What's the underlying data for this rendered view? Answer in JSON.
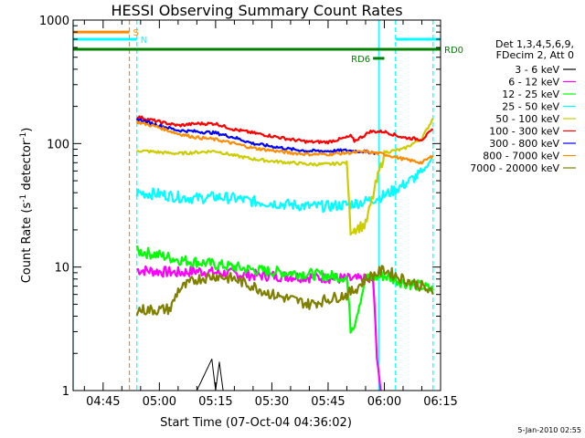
{
  "chart_data": {
    "type": "line",
    "title": "HESSI Observing Summary Count Rates",
    "xlabel": "Start Time (07-Oct-04 04:36:02)",
    "ylabel_main": "Count Rate (s",
    "ylabel_sup1": "-1",
    "ylabel_mid": " detector",
    "ylabel_sup2": "-1",
    "ylabel_end": ")",
    "y_scale": "log",
    "ylim": [
      1,
      1000
    ],
    "xlim_minutes": [
      -23,
      75
    ],
    "y_ticks": [
      {
        "value": 1,
        "label": "1"
      },
      {
        "value": 10,
        "label": "10"
      },
      {
        "value": 100,
        "label": "100"
      },
      {
        "value": 1000,
        "label": "1000"
      }
    ],
    "x_ticks": [
      {
        "minute": -15,
        "label": "04:45"
      },
      {
        "minute": 0,
        "label": "05:00"
      },
      {
        "minute": 15,
        "label": "05:15"
      },
      {
        "minute": 30,
        "label": "05:30"
      },
      {
        "minute": 45,
        "label": "05:45"
      },
      {
        "minute": 60,
        "label": "06:00"
      },
      {
        "minute": 75,
        "label": "06:15"
      }
    ],
    "legend": {
      "header": [
        "Det 1,3,4,5,6,9,",
        "FDecim 2, Att 0"
      ],
      "placement": "right"
    },
    "series": [
      {
        "name": "3 - 6 keV",
        "color": "#000000",
        "x": [
          -6,
          0,
          5,
          10,
          14,
          15,
          16,
          17,
          18,
          25,
          35,
          45,
          55,
          65,
          73
        ],
        "y": [
          1,
          1,
          1,
          1,
          1.8,
          1,
          1.7,
          1,
          1,
          1,
          1,
          1,
          1,
          1,
          1
        ]
      },
      {
        "name": "6 - 12 keV",
        "color": "#ff00ff",
        "x": [
          -6,
          0,
          5,
          10,
          15,
          20,
          25,
          30,
          35,
          40,
          45,
          50,
          55,
          57,
          58,
          59
        ],
        "y": [
          9.5,
          9.2,
          9.0,
          9.3,
          9.0,
          8.8,
          8.6,
          8.5,
          8.4,
          8.3,
          8.2,
          8.0,
          7.9,
          7.8,
          2.0,
          1.0
        ]
      },
      {
        "name": "12 - 25 keV",
        "color": "#00ff00",
        "x": [
          -6,
          0,
          5,
          10,
          15,
          20,
          25,
          30,
          35,
          40,
          45,
          50,
          51,
          52,
          55,
          60,
          65,
          70,
          73
        ],
        "y": [
          13.5,
          12.5,
          11.5,
          11.0,
          10.5,
          10.0,
          9.5,
          9.2,
          9.0,
          8.8,
          8.5,
          8.3,
          3.2,
          3.5,
          8.0,
          8.5,
          7.5,
          7.0,
          6.5
        ]
      },
      {
        "name": "25 - 50 keV",
        "color": "#00ffff",
        "x": [
          -6,
          0,
          5,
          10,
          15,
          20,
          25,
          30,
          35,
          40,
          45,
          50,
          55,
          60,
          65,
          70,
          72,
          73
        ],
        "y": [
          40,
          39,
          37,
          36,
          37,
          36,
          34,
          33,
          32,
          31,
          31,
          32,
          34,
          38,
          46,
          58,
          70,
          80
        ]
      },
      {
        "name": "50 - 100 keV",
        "color": "#cccc00",
        "x": [
          -6,
          0,
          5,
          10,
          15,
          20,
          25,
          30,
          35,
          40,
          45,
          50,
          51,
          55,
          60,
          65,
          70,
          73
        ],
        "y": [
          88,
          85,
          83,
          85,
          87,
          80,
          75,
          72,
          70,
          68,
          68,
          70,
          20,
          22,
          85,
          90,
          110,
          160
        ]
      },
      {
        "name": "100 - 300 keV",
        "color": "#ff0000",
        "x": [
          -6,
          0,
          5,
          10,
          15,
          20,
          25,
          30,
          35,
          40,
          45,
          50,
          51,
          52,
          55,
          56,
          60,
          65,
          70,
          73
        ],
        "y": [
          165,
          150,
          140,
          145,
          145,
          130,
          122,
          115,
          108,
          103,
          103,
          112,
          115,
          105,
          118,
          125,
          125,
          112,
          108,
          130
        ]
      },
      {
        "name": "300 - 800 keV",
        "color": "#0000ff",
        "x": [
          -6,
          0,
          5,
          10,
          15,
          20,
          25,
          30,
          35,
          40,
          45,
          50,
          55,
          58
        ],
        "y": [
          158,
          140,
          128,
          125,
          122,
          112,
          100,
          95,
          90,
          87,
          87,
          88,
          86,
          84
        ]
      },
      {
        "name": "800 - 7000 keV",
        "color": "#ff8c00",
        "x": [
          -6,
          0,
          5,
          10,
          15,
          20,
          25,
          30,
          35,
          40,
          45,
          50,
          55,
          60,
          65,
          70,
          73
        ],
        "y": [
          150,
          135,
          120,
          112,
          108,
          100,
          92,
          88,
          84,
          82,
          82,
          84,
          86,
          82,
          75,
          70,
          80
        ]
      },
      {
        "name": "7000 - 20000 keV",
        "color": "#808000",
        "x": [
          -6,
          0,
          3,
          5,
          10,
          15,
          20,
          25,
          30,
          35,
          40,
          45,
          50,
          52,
          55,
          60,
          65,
          70,
          73
        ],
        "y": [
          4.5,
          4.5,
          4.6,
          6.5,
          8.0,
          8.5,
          8.0,
          7.0,
          6.0,
          5.5,
          5.0,
          5.5,
          6.0,
          6.5,
          8.0,
          9.5,
          8.0,
          7.0,
          6.0
        ]
      }
    ],
    "flags": [
      {
        "label": "S",
        "color": "#ff8c00",
        "x_start": -23,
        "x_end": -8,
        "value": 800
      },
      {
        "label": "N",
        "color": "#00ffff",
        "x_start": -23,
        "x_end": -6,
        "value": 700
      },
      {
        "label": "",
        "color": "#00ffff",
        "x_start": 63,
        "x_end": 75,
        "value": 700
      },
      {
        "label": "RD0",
        "color": "#008000",
        "x_start": -23,
        "x_end": 75,
        "value": 580
      },
      {
        "label": "RD6",
        "color": "#008000",
        "x_start": 57,
        "x_end": 60,
        "value": 490
      }
    ],
    "vertical_markers": [
      {
        "x": -23,
        "color": "#00ffff",
        "style": "solid"
      },
      {
        "x": -8,
        "color": "#ff8c00",
        "style": "dashed"
      },
      {
        "x": -6,
        "color": "#00ffff",
        "style": "dashed"
      },
      {
        "x": 58.5,
        "color": "#00ffff",
        "style": "solid"
      },
      {
        "x": 63,
        "color": "#00ffff",
        "style": "dashed"
      },
      {
        "x": 73,
        "color": "#00ffff",
        "style": "dashed"
      }
    ],
    "footer_date": "5-Jan-2010 02:55",
    "grid": false
  }
}
